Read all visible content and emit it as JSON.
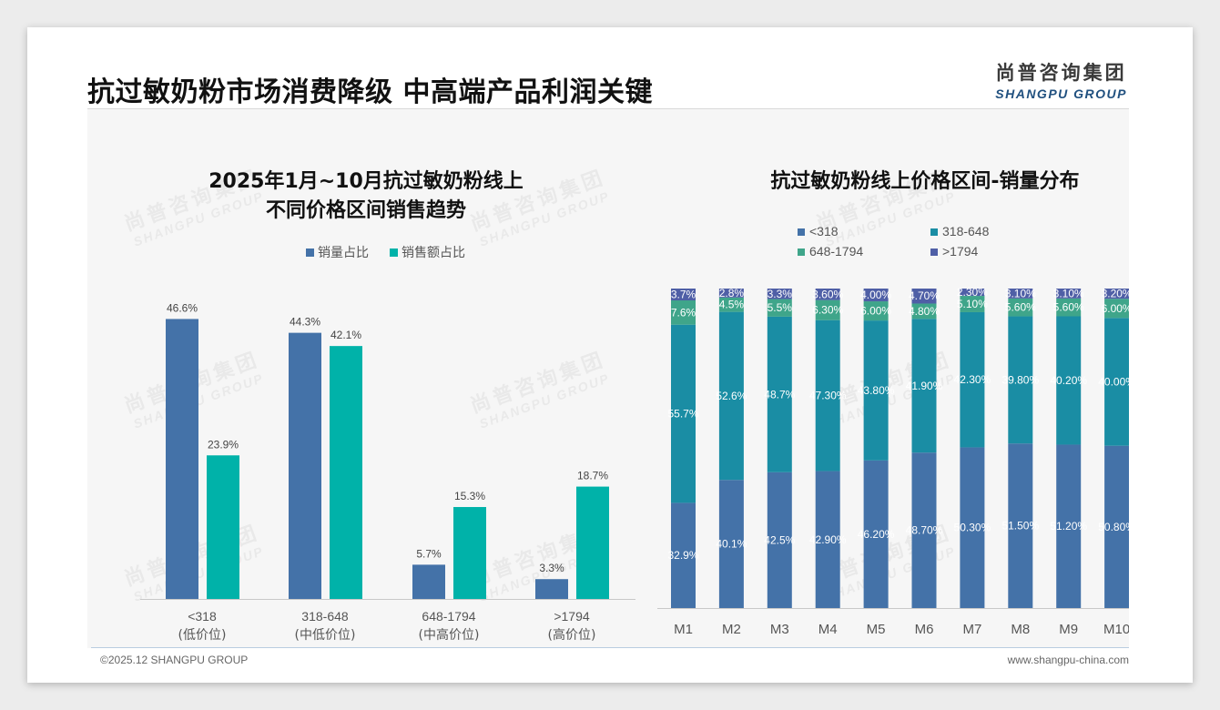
{
  "header": {
    "title": "抗过敏奶粉市场消费降级 中高端产品利润关键",
    "logo_cn": "尚普咨询集团",
    "logo_en": "SHANGPU GROUP"
  },
  "footer": {
    "left": "©2025.12 SHANGPU GROUP",
    "right": "www.shangpu-china.com"
  },
  "watermark": {
    "cn": "尚普咨询集团",
    "en": "SHANGPU GROUP"
  },
  "colors": {
    "blue": "#4472a8",
    "teal": "#00b2a9",
    "mid_teal": "#1a8da4",
    "green": "#3fa58a",
    "purple": "#4f5fa6"
  },
  "chart_data": [
    {
      "type": "bar",
      "title_line1": "2025年1月~10月抗过敏奶粉线上",
      "title_line2": "不同价格区间销售趋势",
      "categories": [
        "<318",
        "318-648",
        "648-1794",
        ">1794"
      ],
      "category_sublabels": [
        "(低价位)",
        "(中低价位)",
        "(中高价位)",
        "(高价位)"
      ],
      "series": [
        {
          "name": "销量占比",
          "values": [
            46.6,
            44.3,
            5.7,
            3.3
          ],
          "labels": [
            "46.6%",
            "44.3%",
            "5.7%",
            "3.3%"
          ]
        },
        {
          "name": "销售额占比",
          "values": [
            23.9,
            42.1,
            15.3,
            18.7
          ],
          "labels": [
            "23.9%",
            "42.1%",
            "15.3%",
            "18.7%"
          ]
        }
      ],
      "ylim": [
        0,
        50
      ],
      "legend_position": "top"
    },
    {
      "type": "bar",
      "stacked": true,
      "title": "抗过敏奶粉线上价格区间-销量分布",
      "categories": [
        "M1",
        "M2",
        "M3",
        "M4",
        "M5",
        "M6",
        "M7",
        "M8",
        "M9",
        "M10"
      ],
      "series": [
        {
          "name": "<318",
          "values": [
            32.9,
            40.1,
            42.5,
            42.9,
            46.2,
            48.7,
            50.3,
            51.5,
            51.2,
            50.8
          ],
          "labels": [
            "32.9%",
            "40.1%",
            "42.5%",
            "42.90%",
            "46.20%",
            "48.70%",
            "50.30%",
            "51.50%",
            "51.20%",
            "50.80%"
          ]
        },
        {
          "name": "318-648",
          "values": [
            55.7,
            52.6,
            48.7,
            47.3,
            43.8,
            41.9,
            42.3,
            39.8,
            40.2,
            40.0
          ],
          "labels": [
            "55.7%",
            "52.6%",
            "48.7%",
            "47.30%",
            "43.80%",
            "41.90%",
            "42.30%",
            "39.80%",
            "40.20%",
            "40.00%"
          ]
        },
        {
          "name": "648-1794",
          "values": [
            7.6,
            4.5,
            5.5,
            6.3,
            6.0,
            4.8,
            5.1,
            5.6,
            5.6,
            6.0
          ],
          "labels": [
            "7.6%",
            "4.5%",
            "5.5%",
            "6.30%",
            "6.00%",
            "4.80%",
            "5.10%",
            "5.60%",
            "5.60%",
            "6.00%"
          ]
        },
        {
          "name": ">1794",
          "values": [
            3.7,
            2.8,
            3.3,
            3.6,
            4.0,
            4.7,
            2.3,
            3.1,
            3.1,
            3.2
          ],
          "labels": [
            "3.7%",
            "2.8%",
            "3.3%",
            "3.60%",
            "4.00%",
            "4.70%",
            "2.30%",
            "3.10%",
            "3.10%",
            "3.20%"
          ]
        }
      ],
      "ylim": [
        0,
        100
      ],
      "legend_position": "top"
    }
  ]
}
